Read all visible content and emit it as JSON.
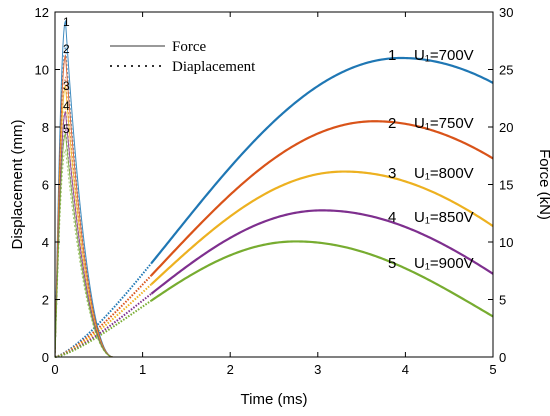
{
  "chart_data": {
    "type": "line",
    "x_label": "Time (ms)",
    "y_left_label": "Displacement (mm)",
    "y_right_label": "Force (kN)",
    "xlim": [
      0,
      5
    ],
    "ylim_left": [
      0,
      12
    ],
    "ylim_right": [
      0,
      30
    ],
    "x_ticks": [
      "0",
      "1",
      "2",
      "3",
      "4",
      "5"
    ],
    "y_left_ticks": [
      "0",
      "2",
      "4",
      "6",
      "8",
      "10",
      "12"
    ],
    "y_right_ticks": [
      "0",
      "5",
      "10",
      "15",
      "20",
      "25",
      "30"
    ],
    "legend": [
      {
        "label": "Force",
        "style": "solid"
      },
      {
        "label": "Diaplacement",
        "style": "dotted"
      }
    ],
    "series": [
      {
        "id": "1",
        "label": "U₁=700V",
        "color": "#1f77b4",
        "force_peak_kN": 29.2,
        "force_peak_time_ms": 0.12,
        "disp_peak_mm": 10.4,
        "disp_peak_time_ms": 3.95
      },
      {
        "id": "2",
        "label": "U₁=750V",
        "color": "#d95319",
        "force_peak_kN": 26.2,
        "force_peak_time_ms": 0.12,
        "disp_peak_mm": 8.2,
        "disp_peak_time_ms": 3.65
      },
      {
        "id": "3",
        "label": "U₁=800V",
        "color": "#edb120",
        "force_peak_kN": 23.6,
        "force_peak_time_ms": 0.12,
        "disp_peak_mm": 6.45,
        "disp_peak_time_ms": 3.3
      },
      {
        "id": "4",
        "label": "U₁=850V",
        "color": "#7e2f8e",
        "force_peak_kN": 21.3,
        "force_peak_time_ms": 0.12,
        "disp_peak_mm": 5.1,
        "disp_peak_time_ms": 3.05
      },
      {
        "id": "5",
        "label": "U₁=900V",
        "color": "#77ac30",
        "force_peak_kN": 19.4,
        "force_peak_time_ms": 0.12,
        "disp_peak_mm": 4.02,
        "disp_peak_time_ms": 2.75
      }
    ],
    "peak_labels": [
      "1",
      "2",
      "3",
      "4",
      "5"
    ]
  }
}
